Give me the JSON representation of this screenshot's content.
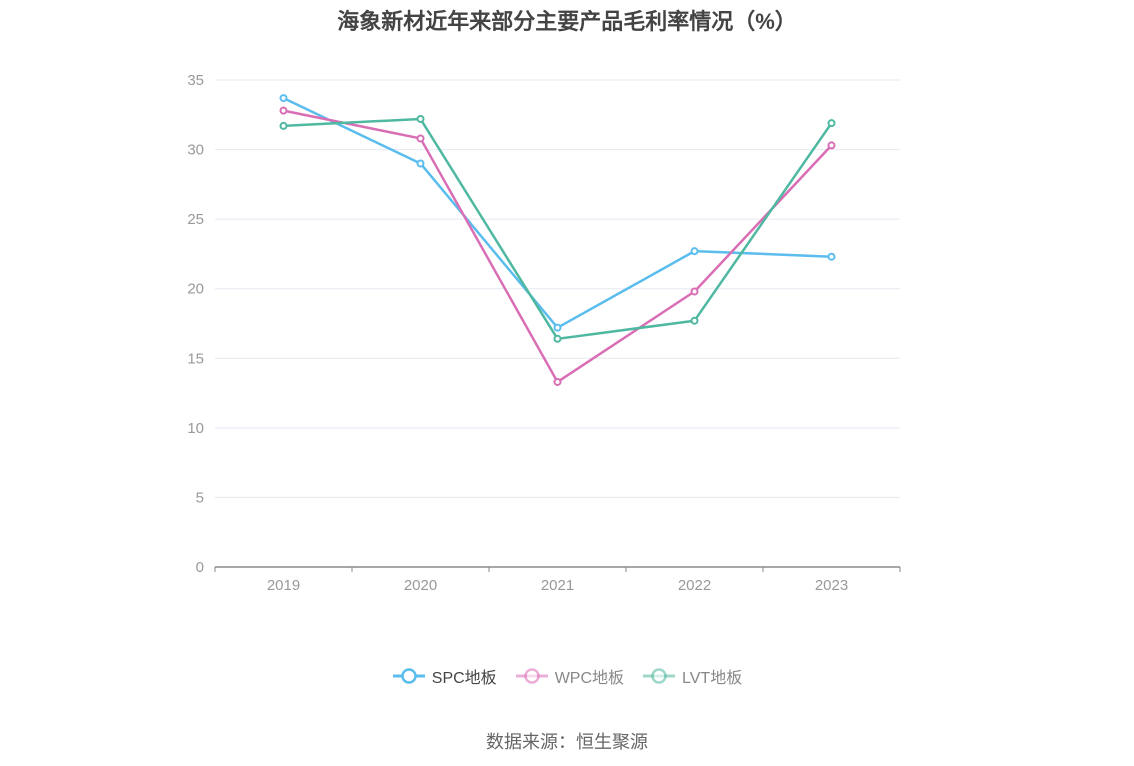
{
  "chart_data": {
    "type": "line",
    "title": "海象新材近年来部分主要产品毛利率情况（%）",
    "categories": [
      "2019",
      "2020",
      "2021",
      "2022",
      "2023"
    ],
    "ylim": [
      0,
      35
    ],
    "yticks": [
      0,
      5,
      10,
      15,
      20,
      25,
      30,
      35
    ],
    "grid": true,
    "legend_position": "bottom",
    "series": [
      {
        "name": "SPC地板",
        "color": "#5bbdee",
        "values": [
          33.7,
          29.0,
          17.2,
          22.7,
          22.3
        ]
      },
      {
        "name": "WPC地板",
        "color": "#d96eb5",
        "values": [
          32.8,
          30.8,
          13.3,
          19.8,
          30.3
        ]
      },
      {
        "name": "LVT地板",
        "color": "#4fb8a0",
        "values": [
          31.7,
          32.2,
          16.4,
          17.7,
          31.9
        ]
      }
    ]
  },
  "source_text": "数据来源：恒生聚源"
}
